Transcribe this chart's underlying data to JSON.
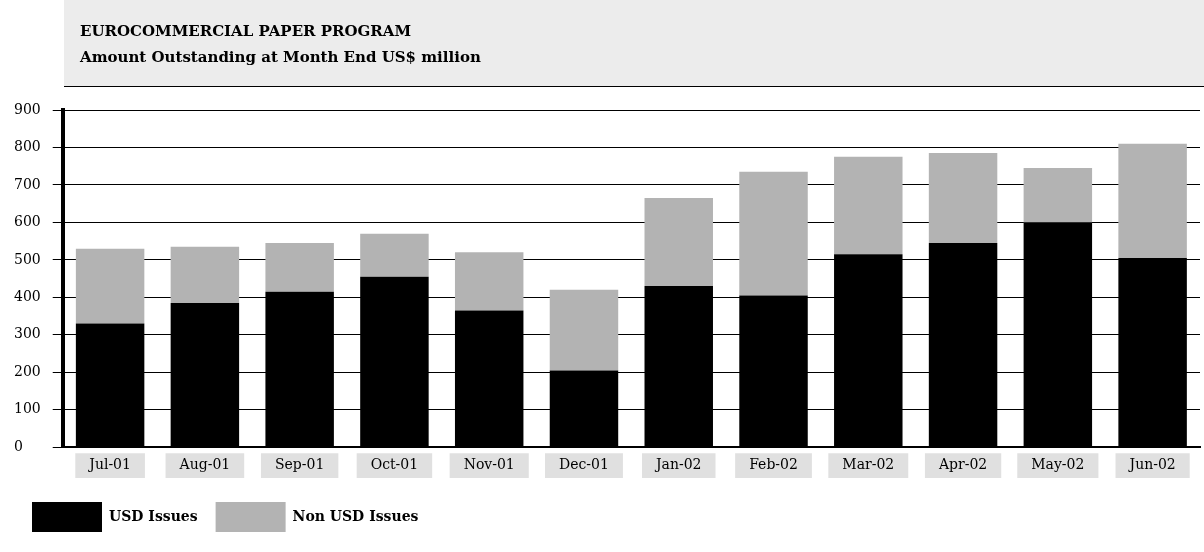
{
  "chart_data": {
    "type": "bar",
    "title": "EUROCOMMERCIAL PAPER PROGRAM",
    "subtitle": "Amount Outstanding at Month End US$ million",
    "categories": [
      "Jul-01",
      "Aug-01",
      "Sep-01",
      "Oct-01",
      "Nov-01",
      "Dec-01",
      "Jan-02",
      "Feb-02",
      "Mar-02",
      "Apr-02",
      "May-02",
      "Jun-02"
    ],
    "series": [
      {
        "name": "USD Issues",
        "color": "#000000",
        "values": [
          330,
          385,
          415,
          455,
          365,
          205,
          430,
          405,
          515,
          545,
          600,
          505
        ]
      },
      {
        "name": "Non USD Issues",
        "color": "#b3b3b3",
        "values": [
          200,
          150,
          130,
          115,
          155,
          215,
          235,
          330,
          260,
          240,
          145,
          305
        ]
      }
    ],
    "stacked": true,
    "ylim": [
      0,
      900
    ],
    "yticks": [
      0,
      100,
      200,
      300,
      400,
      500,
      600,
      700,
      800,
      900
    ],
    "grid": "y",
    "legend": "bottom left"
  }
}
